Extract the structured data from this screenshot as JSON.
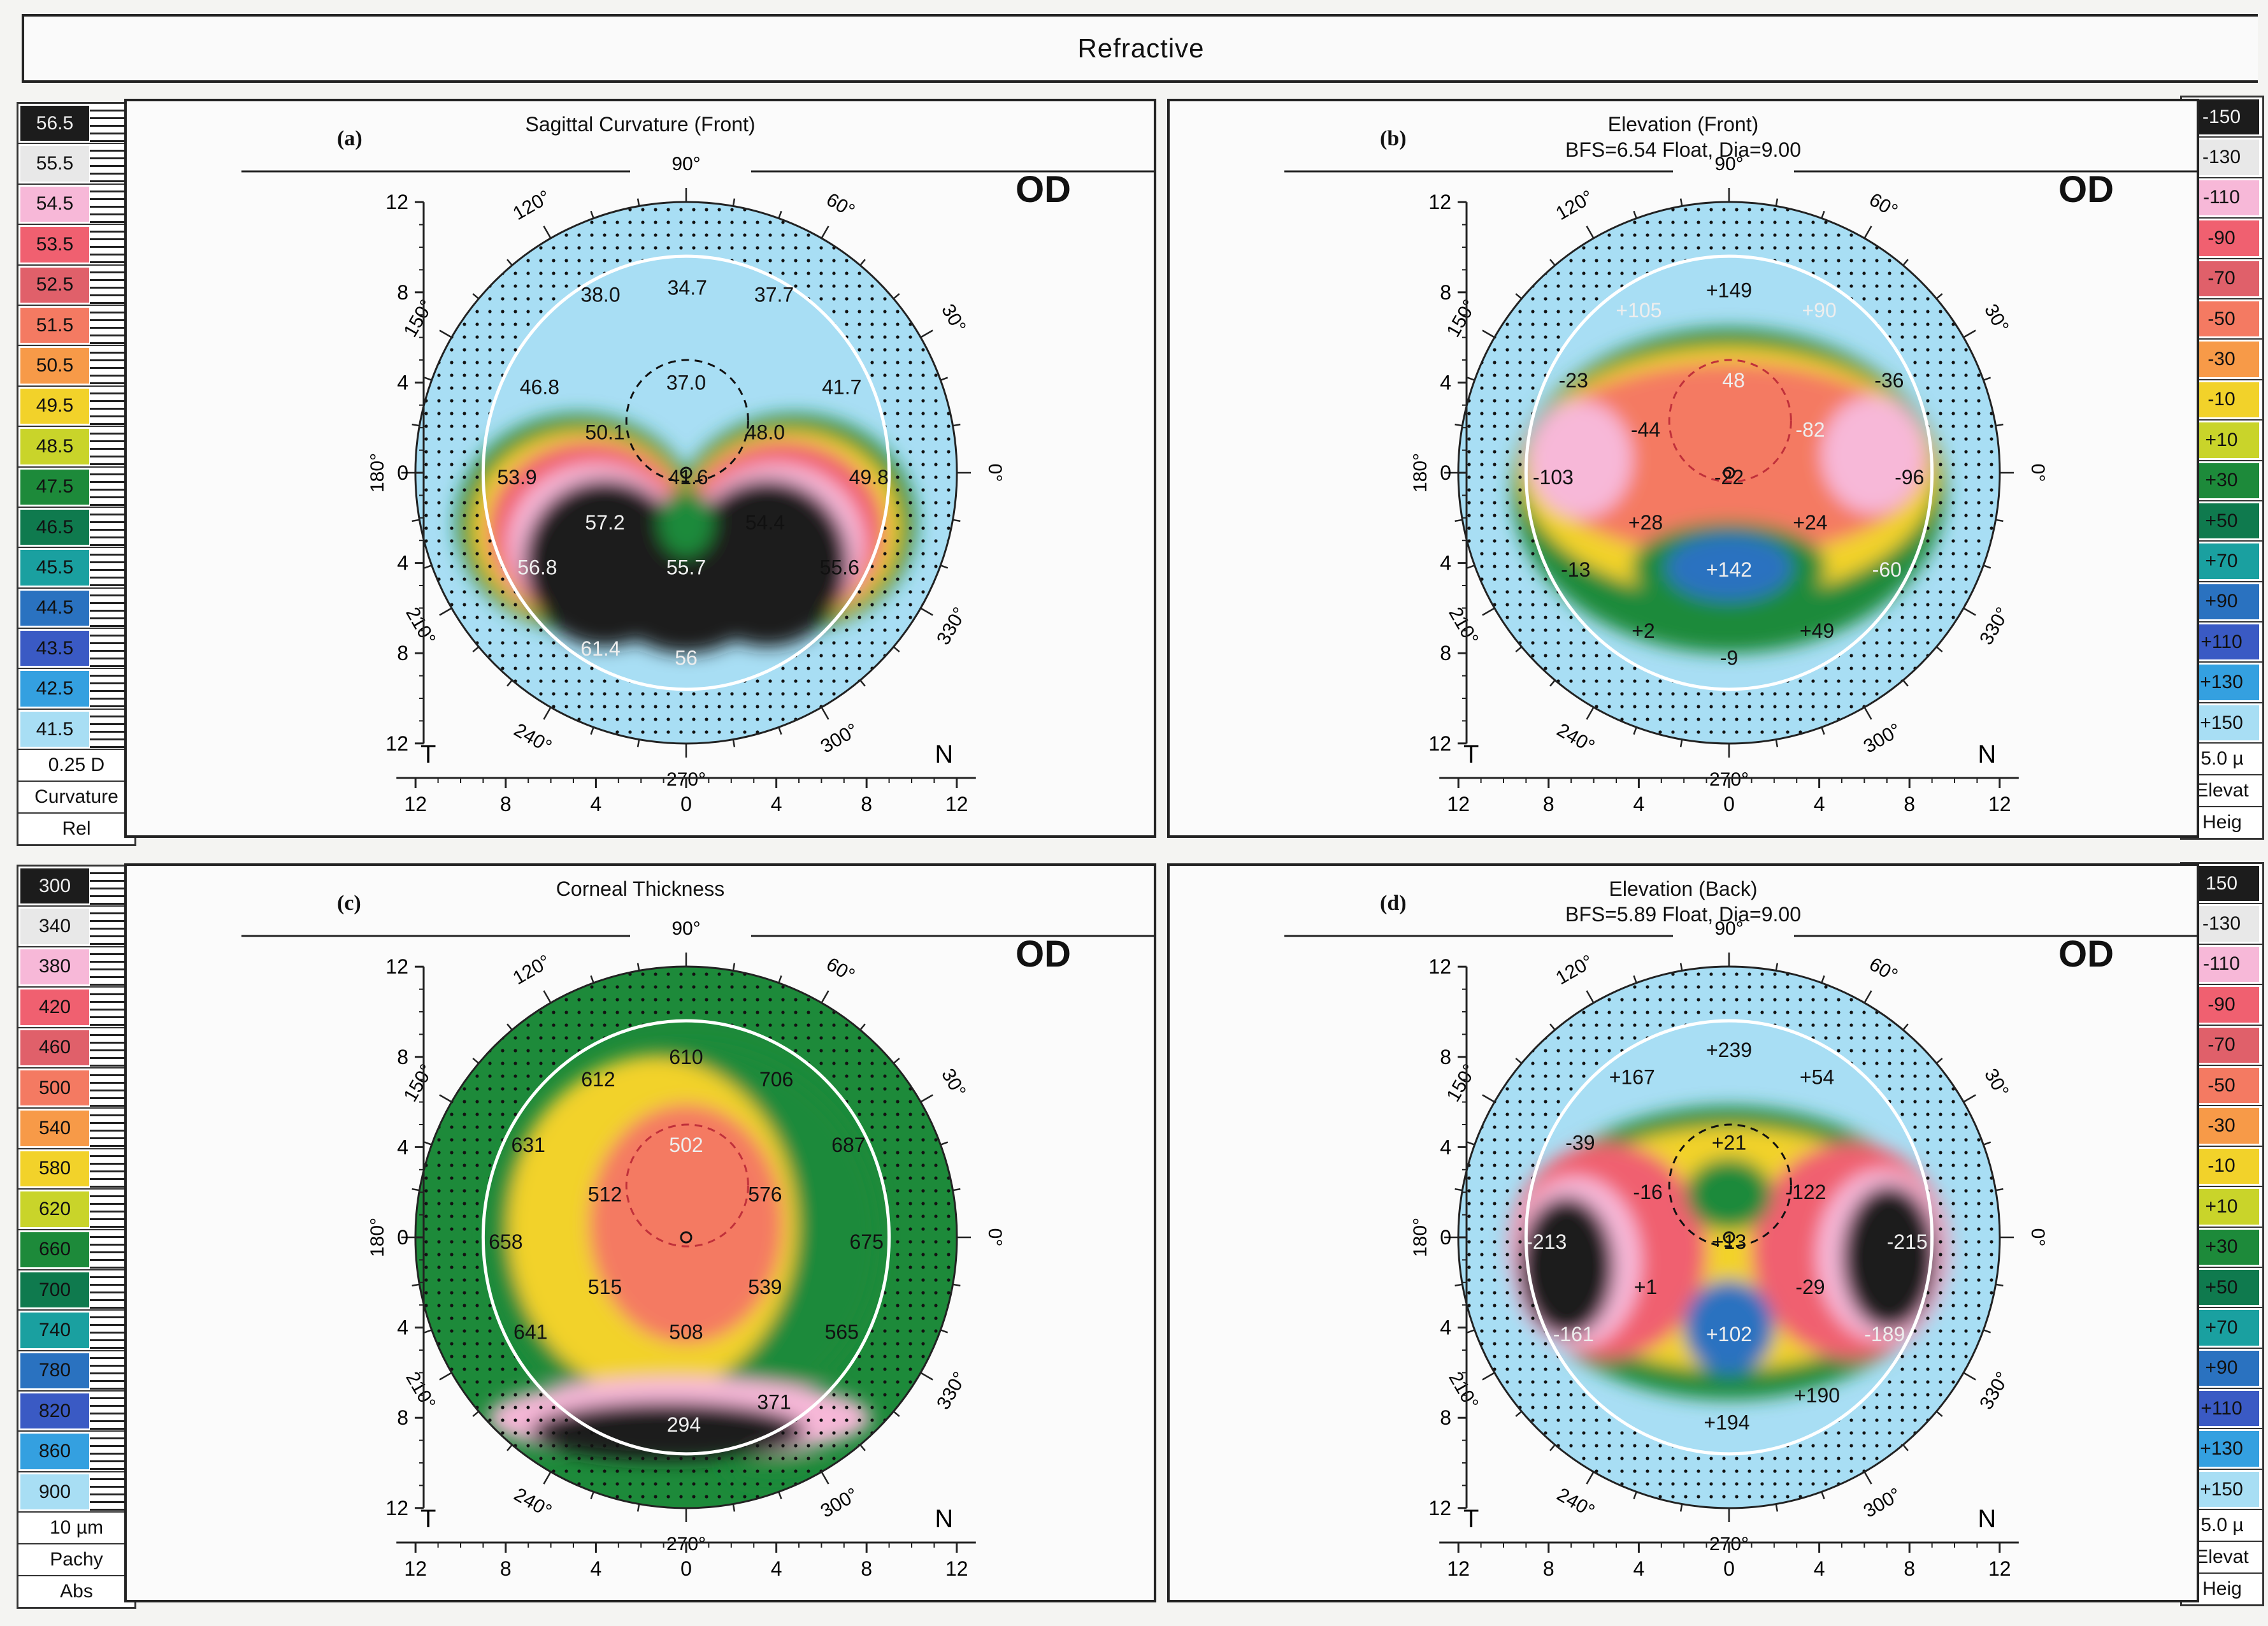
{
  "header": {
    "title": "Refractive"
  },
  "scales": {
    "curvature": {
      "values": [
        "56.5",
        "55.5",
        "54.5",
        "53.5",
        "52.5",
        "51.5",
        "50.5",
        "49.5",
        "48.5",
        "47.5",
        "46.5",
        "45.5",
        "44.5",
        "43.5",
        "42.5",
        "41.5"
      ],
      "colors": [
        "#1c1c1c",
        "#e8e8e8",
        "#f7b8d8",
        "#f06070",
        "#e0606a",
        "#f47a62",
        "#f79a48",
        "#f2d22a",
        "#c9d42a",
        "#1d8a3a",
        "#0f7a4e",
        "#1aa0a0",
        "#2a72c0",
        "#3a5ac4",
        "#34a0e0",
        "#a8def4"
      ],
      "step": "0.25 D",
      "type": "Curvature",
      "mode": "Rel"
    },
    "pachy": {
      "values": [
        "300",
        "340",
        "380",
        "420",
        "460",
        "500",
        "540",
        "580",
        "620",
        "660",
        "700",
        "740",
        "780",
        "820",
        "860",
        "900"
      ],
      "colors": [
        "#1c1c1c",
        "#e8e8e8",
        "#f7b8d8",
        "#f06070",
        "#e0606a",
        "#f47a62",
        "#f79a48",
        "#f2d22a",
        "#c9d42a",
        "#1d8a3a",
        "#0f7a4e",
        "#1aa0a0",
        "#2a72c0",
        "#3a5ac4",
        "#34a0e0",
        "#a8def4"
      ],
      "step": "10 µm",
      "type": "Pachy",
      "mode": "Abs"
    },
    "elevation_front": {
      "values": [
        "-150",
        "-130",
        "-110",
        "-90",
        "-70",
        "-50",
        "-30",
        "-10",
        "+10",
        "+30",
        "+50",
        "+70",
        "+90",
        "+110",
        "+130",
        "+150"
      ],
      "colors": [
        "#1c1c1c",
        "#e8e8e8",
        "#f7b8d8",
        "#f06070",
        "#e0606a",
        "#f47a62",
        "#f79a48",
        "#f2d22a",
        "#c9d42a",
        "#1d8a3a",
        "#0f7a4e",
        "#1aa0a0",
        "#2a72c0",
        "#3a5ac4",
        "#34a0e0",
        "#a8def4"
      ],
      "step": "5.0 µ",
      "type": "Elevat",
      "mode": "Heig"
    },
    "elevation_back": {
      "values": [
        "150",
        "-130",
        "-110",
        "-90",
        "-70",
        "-50",
        "-30",
        "-10",
        "+10",
        "+30",
        "+50",
        "+70",
        "+90",
        "+110",
        "+130",
        "+150"
      ],
      "colors": [
        "#1c1c1c",
        "#e8e8e8",
        "#f7b8d8",
        "#f06070",
        "#e0606a",
        "#f47a62",
        "#f79a48",
        "#f2d22a",
        "#c9d42a",
        "#1d8a3a",
        "#0f7a4e",
        "#1aa0a0",
        "#2a72c0",
        "#3a5ac4",
        "#34a0e0",
        "#a8def4"
      ],
      "step": "5.0 µ",
      "type": "Elevat",
      "mode": "Heig"
    }
  },
  "axis": {
    "ticks": [
      "12",
      "8",
      "4",
      "0",
      "4",
      "8",
      "12"
    ],
    "y_ticks": [
      "12",
      "8",
      "4",
      "0",
      "4",
      "8",
      "12"
    ],
    "angles": [
      "90°",
      "60°",
      "30°",
      "0°",
      "330°",
      "300°",
      "270°",
      "240°",
      "210°",
      "180°",
      "150°",
      "120°"
    ],
    "temporal": "T",
    "nasal": "N"
  },
  "panels": [
    {
      "id": "a",
      "label": "(a)",
      "title": "Sagittal Curvature (Front)",
      "subtitle": "",
      "eye": "OD",
      "values": [
        {
          "t": "34.7",
          "x": 0.05,
          "y": 8.2,
          "c": "#111"
        },
        {
          "t": "38.0",
          "x": -3.8,
          "y": 7.9,
          "c": "#111"
        },
        {
          "t": "37.7",
          "x": 3.9,
          "y": 7.9,
          "c": "#111"
        },
        {
          "t": "37.0",
          "x": 0.0,
          "y": 4.0,
          "c": "#111"
        },
        {
          "t": "46.8",
          "x": -6.5,
          "y": 3.8,
          "c": "#111"
        },
        {
          "t": "41.7",
          "x": 6.9,
          "y": 3.8,
          "c": "#111"
        },
        {
          "t": "50.1",
          "x": -3.6,
          "y": 1.8,
          "c": "#111"
        },
        {
          "t": "48.0",
          "x": 3.5,
          "y": 1.8,
          "c": "#111"
        },
        {
          "t": "53.9",
          "x": -7.5,
          "y": -0.2,
          "c": "#111"
        },
        {
          "t": "41.6",
          "x": 0.1,
          "y": -0.2,
          "c": "#111"
        },
        {
          "t": "49.8",
          "x": 8.1,
          "y": -0.2,
          "c": "#111"
        },
        {
          "t": "57.2",
          "x": -3.6,
          "y": -2.2,
          "c": "#eee"
        },
        {
          "t": "54.4",
          "x": 3.5,
          "y": -2.2,
          "c": "#111"
        },
        {
          "t": "56.8",
          "x": -6.6,
          "y": -4.2,
          "c": "#eee"
        },
        {
          "t": "55.7",
          "x": 0.0,
          "y": -4.2,
          "c": "#eee"
        },
        {
          "t": "55.6",
          "x": 6.8,
          "y": -4.2,
          "c": "#111"
        },
        {
          "t": "61.4",
          "x": -3.8,
          "y": -7.8,
          "c": "#eee"
        },
        {
          "t": "56",
          "x": 0.0,
          "y": -8.2,
          "c": "#eee"
        }
      ]
    },
    {
      "id": "b",
      "label": "(b)",
      "title": "Elevation (Front)",
      "subtitle": "BFS=6.54 Float, Dia=9.00",
      "eye": "OD",
      "values": [
        {
          "t": "+149",
          "x": 0.0,
          "y": 8.1,
          "c": "#111"
        },
        {
          "t": "+105",
          "x": -4.0,
          "y": 7.2,
          "c": "#eee"
        },
        {
          "t": "+90",
          "x": 4.0,
          "y": 7.2,
          "c": "#eee"
        },
        {
          "t": "-23",
          "x": -6.9,
          "y": 4.1,
          "c": "#111"
        },
        {
          "t": "48",
          "x": 0.2,
          "y": 4.1,
          "c": "#eee"
        },
        {
          "t": "-36",
          "x": 7.1,
          "y": 4.1,
          "c": "#111"
        },
        {
          "t": "-44",
          "x": -3.7,
          "y": 1.9,
          "c": "#111"
        },
        {
          "t": "-82",
          "x": 3.6,
          "y": 1.9,
          "c": "#eee"
        },
        {
          "t": "-103",
          "x": -7.8,
          "y": -0.2,
          "c": "#111"
        },
        {
          "t": "-22",
          "x": 0.0,
          "y": -0.2,
          "c": "#111"
        },
        {
          "t": "-96",
          "x": 8.0,
          "y": -0.2,
          "c": "#111"
        },
        {
          "t": "+28",
          "x": -3.7,
          "y": -2.2,
          "c": "#111"
        },
        {
          "t": "+24",
          "x": 3.6,
          "y": -2.2,
          "c": "#111"
        },
        {
          "t": "-13",
          "x": -6.8,
          "y": -4.3,
          "c": "#111"
        },
        {
          "t": "+142",
          "x": 0.0,
          "y": -4.3,
          "c": "#eee"
        },
        {
          "t": "-60",
          "x": 7.0,
          "y": -4.3,
          "c": "#eee"
        },
        {
          "t": "+2",
          "x": -3.8,
          "y": -7.0,
          "c": "#111"
        },
        {
          "t": "+49",
          "x": 3.9,
          "y": -7.0,
          "c": "#111"
        },
        {
          "t": "-9",
          "x": 0.0,
          "y": -8.2,
          "c": "#111"
        }
      ]
    },
    {
      "id": "c",
      "label": "(c)",
      "title": "Corneal Thickness",
      "subtitle": "",
      "eye": "OD",
      "values": [
        {
          "t": "610",
          "x": 0.0,
          "y": 8.0,
          "c": "#111"
        },
        {
          "t": "612",
          "x": -3.9,
          "y": 7.0,
          "c": "#111"
        },
        {
          "t": "706",
          "x": 4.0,
          "y": 7.0,
          "c": "#111"
        },
        {
          "t": "631",
          "x": -7.0,
          "y": 4.1,
          "c": "#111"
        },
        {
          "t": "502",
          "x": 0.0,
          "y": 4.1,
          "c": "#eee"
        },
        {
          "t": "687",
          "x": 7.2,
          "y": 4.1,
          "c": "#111"
        },
        {
          "t": "512",
          "x": -3.6,
          "y": 1.9,
          "c": "#111"
        },
        {
          "t": "576",
          "x": 3.5,
          "y": 1.9,
          "c": "#111"
        },
        {
          "t": "658",
          "x": -8.0,
          "y": -0.2,
          "c": "#111"
        },
        {
          "t": "675",
          "x": 8.0,
          "y": -0.2,
          "c": "#111"
        },
        {
          "t": "515",
          "x": -3.6,
          "y": -2.2,
          "c": "#111"
        },
        {
          "t": "539",
          "x": 3.5,
          "y": -2.2,
          "c": "#111"
        },
        {
          "t": "641",
          "x": -6.9,
          "y": -4.2,
          "c": "#111"
        },
        {
          "t": "508",
          "x": 0.0,
          "y": -4.2,
          "c": "#111"
        },
        {
          "t": "565",
          "x": 6.9,
          "y": -4.2,
          "c": "#111"
        },
        {
          "t": "371",
          "x": 3.9,
          "y": -7.3,
          "c": "#111"
        },
        {
          "t": "294",
          "x": -0.1,
          "y": -8.3,
          "c": "#eee"
        }
      ]
    },
    {
      "id": "d",
      "label": "(d)",
      "title": "Elevation (Back)",
      "subtitle": "BFS=5.89 Float, Dia=9.00",
      "eye": "OD",
      "values": [
        {
          "t": "+239",
          "x": 0.0,
          "y": 8.3,
          "c": "#111"
        },
        {
          "t": "+167",
          "x": -4.3,
          "y": 7.1,
          "c": "#111"
        },
        {
          "t": "+54",
          "x": 3.9,
          "y": 7.1,
          "c": "#111"
        },
        {
          "t": "-39",
          "x": -6.6,
          "y": 4.2,
          "c": "#111"
        },
        {
          "t": "+21",
          "x": 0.0,
          "y": 4.2,
          "c": "#111"
        },
        {
          "t": "-16",
          "x": -3.6,
          "y": 2.0,
          "c": "#111"
        },
        {
          "t": "-122",
          "x": 3.4,
          "y": 2.0,
          "c": "#111"
        },
        {
          "t": "-213",
          "x": -8.1,
          "y": -0.2,
          "c": "#eee"
        },
        {
          "t": "+13",
          "x": 0.0,
          "y": -0.2,
          "c": "#111"
        },
        {
          "t": "-215",
          "x": 7.9,
          "y": -0.2,
          "c": "#eee"
        },
        {
          "t": "+1",
          "x": -3.7,
          "y": -2.2,
          "c": "#111"
        },
        {
          "t": "-29",
          "x": 3.6,
          "y": -2.2,
          "c": "#111"
        },
        {
          "t": "-161",
          "x": -6.9,
          "y": -4.3,
          "c": "#eee"
        },
        {
          "t": "+102",
          "x": 0.0,
          "y": -4.3,
          "c": "#eee"
        },
        {
          "t": "-189",
          "x": 6.9,
          "y": -4.3,
          "c": "#eee"
        },
        {
          "t": "+190",
          "x": 3.9,
          "y": -7.0,
          "c": "#111"
        },
        {
          "t": "+194",
          "x": -0.1,
          "y": -8.2,
          "c": "#111"
        }
      ]
    }
  ]
}
